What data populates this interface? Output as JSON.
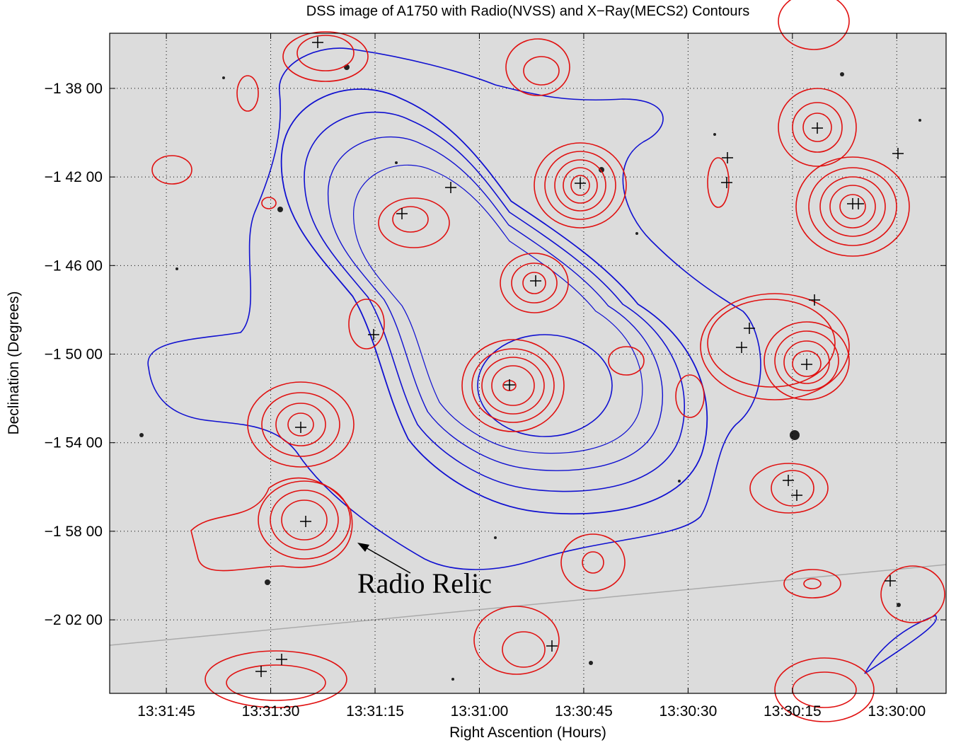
{
  "chart_data": {
    "type": "image",
    "title": "DSS image of A1750 with Radio(NVSS) and X−Ray(MECS2) Contours",
    "x_label": "Right Ascention (Hours)",
    "y_label": "Declination (Degrees)",
    "annotation": "Radio Relic",
    "xlim": [
      13.53143,
      13.49803
    ],
    "ylim": [
      -2.08867,
      -1.59183
    ],
    "xticks": [
      {
        "value": 13.529167,
        "label": "13:31:45"
      },
      {
        "value": 13.525,
        "label": "13:31:30"
      },
      {
        "value": 13.520833,
        "label": "13:31:15"
      },
      {
        "value": 13.516667,
        "label": "13:31:00"
      },
      {
        "value": 13.5125,
        "label": "13:30:45"
      },
      {
        "value": 13.508333,
        "label": "13:30:30"
      },
      {
        "value": 13.504167,
        "label": "13:30:15"
      },
      {
        "value": 13.5,
        "label": "13:30:00"
      }
    ],
    "yticks": [
      {
        "value": -1.633333,
        "label": "−1 38 00"
      },
      {
        "value": -1.7,
        "label": "−1 42 00"
      },
      {
        "value": -1.766667,
        "label": "−1 46 00"
      },
      {
        "value": -1.833333,
        "label": "−1 50 00"
      },
      {
        "value": -1.9,
        "label": "−1 54 00"
      },
      {
        "value": -1.966667,
        "label": "−1 58 00"
      },
      {
        "value": -2.033333,
        "label": "−2 02 00"
      }
    ],
    "grid": true
  }
}
